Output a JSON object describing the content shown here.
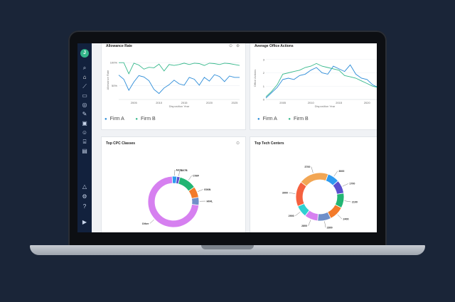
{
  "app": {
    "logo_letter": "J"
  },
  "sidebar": {
    "items": [
      {
        "name": "search-icon",
        "glyph": "⌕"
      },
      {
        "name": "home-icon",
        "glyph": "⌂",
        "active": true
      },
      {
        "name": "chart-icon",
        "glyph": "⟋"
      },
      {
        "name": "briefcase-icon",
        "glyph": "▭"
      },
      {
        "name": "compass-icon",
        "glyph": "◎"
      },
      {
        "name": "tools-icon",
        "glyph": "✎"
      },
      {
        "name": "gallery-icon",
        "glyph": "▣"
      },
      {
        "name": "people-icon",
        "glyph": "☺"
      },
      {
        "name": "bank-icon",
        "glyph": "⌸"
      },
      {
        "name": "document-icon",
        "glyph": "▤"
      },
      {
        "name": "alert-icon",
        "glyph": "△"
      },
      {
        "name": "settings-icon",
        "glyph": "⚙"
      },
      {
        "name": "help-icon",
        "glyph": "?"
      },
      {
        "name": "video-icon",
        "glyph": "▶"
      }
    ]
  },
  "cards": {
    "allowance_rate": {
      "title": "Allowance Rate",
      "legend": [
        {
          "label": "Firm A",
          "color": "#2a8bd8"
        },
        {
          "label": "Firm B",
          "color": "#37b98c"
        }
      ]
    },
    "office_actions": {
      "title": "Average Office Actions",
      "legend": [
        {
          "label": "Firm A",
          "color": "#2a8bd8"
        },
        {
          "label": "Firm B",
          "color": "#37b98c"
        }
      ]
    },
    "cpc_classes": {
      "title": "Top CPC Classes"
    },
    "tech_centers": {
      "title": "Top Tech Centers"
    }
  },
  "chart_data": [
    {
      "type": "line",
      "title": "Allowance Rate",
      "xlabel": "Disposition Year",
      "ylabel": "Allowance Rate",
      "x": [
        2002,
        2003,
        2004,
        2005,
        2006,
        2007,
        2008,
        2009,
        2010,
        2011,
        2012,
        2013,
        2014,
        2015,
        2016,
        2017,
        2018,
        2019,
        2020,
        2021,
        2022,
        2023,
        2024,
        2025,
        2026
      ],
      "xticks": [
        "2005",
        "2010",
        "2015",
        "2020",
        "2025"
      ],
      "yticks": [
        "50%",
        "100%"
      ],
      "ylim": [
        20,
        105
      ],
      "series": [
        {
          "name": "Firm A",
          "color": "#2a8bd8",
          "values": [
            73,
            64,
            40,
            58,
            72,
            69,
            61,
            42,
            33,
            45,
            52,
            62,
            54,
            51,
            68,
            64,
            51,
            68,
            60,
            74,
            70,
            59,
            71,
            68,
            68
          ]
        },
        {
          "name": "Firm B",
          "color": "#37b98c",
          "values": [
            100,
            100,
            76,
            99,
            95,
            86,
            90,
            89,
            97,
            82,
            96,
            94,
            96,
            99,
            96,
            99,
            98,
            94,
            99,
            98,
            96,
            99,
            98,
            96,
            94
          ]
        }
      ]
    },
    {
      "type": "line",
      "title": "Average Office Actions",
      "xlabel": "Disposition Year",
      "ylabel": "Office Actions",
      "x": [
        2002,
        2003,
        2004,
        2005,
        2006,
        2007,
        2008,
        2009,
        2010,
        2011,
        2012,
        2013,
        2014,
        2015,
        2016,
        2017,
        2018,
        2019,
        2020,
        2021,
        2022,
        2023
      ],
      "xticks": [
        "2005",
        "2010",
        "2015",
        "2020"
      ],
      "yticks": [
        "0",
        "1",
        "2",
        "3"
      ],
      "ylim": [
        0,
        3.2
      ],
      "series": [
        {
          "name": "Firm A",
          "color": "#2a8bd8",
          "values": [
            0.1,
            0.5,
            0.9,
            1.5,
            1.6,
            1.5,
            1.8,
            1.9,
            2.2,
            2.4,
            2.0,
            1.9,
            2.5,
            2.3,
            2.1,
            2.6,
            1.9,
            1.6,
            1.5,
            1.1,
            0.9,
            1.1
          ]
        },
        {
          "name": "Firm B",
          "color": "#37b98c",
          "values": [
            0.2,
            0.6,
            1.1,
            1.9,
            2.0,
            2.1,
            2.2,
            2.4,
            2.5,
            2.7,
            2.5,
            2.4,
            2.3,
            2.2,
            1.8,
            1.7,
            1.6,
            1.4,
            1.2,
            1.0,
            0.9,
            0.8
          ]
        }
      ]
    },
    {
      "type": "pie",
      "title": "Top CPC Classes",
      "donut": true,
      "slices": [
        {
          "label": "A61L",
          "value": 3,
          "color": "#2f9bf0"
        },
        {
          "label": "B07B",
          "value": 2,
          "color": "#5b4fcf"
        },
        {
          "label": "C06F",
          "value": 11,
          "color": "#22b573"
        },
        {
          "label": "G06N",
          "value": 7,
          "color": "#f37a2a"
        },
        {
          "label": "H04L",
          "value": 5,
          "color": "#6f8fc9"
        },
        {
          "label": "Other",
          "value": 72,
          "color": "#d680f0"
        }
      ]
    },
    {
      "type": "pie",
      "title": "Top Tech Centers",
      "donut": true,
      "slices": [
        {
          "label": "3600",
          "value": 8,
          "color": "#2f9bf0"
        },
        {
          "label": "1700",
          "value": 9,
          "color": "#5b4fcf"
        },
        {
          "label": "2100",
          "value": 10,
          "color": "#22b573"
        },
        {
          "label": "2400",
          "value": 10,
          "color": "#f37a2a"
        },
        {
          "label": "2800",
          "value": 9,
          "color": "#6f8fc9"
        },
        {
          "label": "2800",
          "value": 9,
          "color": "#d680f0"
        },
        {
          "label": "2900",
          "value": 8,
          "color": "#2ed1d1"
        },
        {
          "label": "3900",
          "value": 17,
          "color": "#f5613f"
        },
        {
          "label": "3700",
          "value": 20,
          "color": "#f2a654"
        }
      ]
    }
  ]
}
